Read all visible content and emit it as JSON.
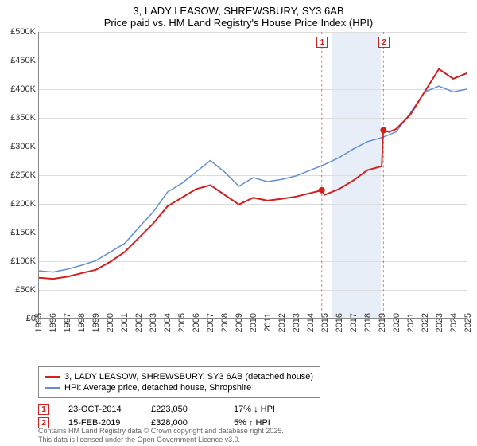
{
  "title": {
    "line1": "3, LADY LEASOW, SHREWSBURY, SY3 6AB",
    "line2": "Price paid vs. HM Land Registry's House Price Index (HPI)"
  },
  "chart": {
    "type": "line",
    "x_axis": {
      "min": 1995,
      "max": 2025,
      "ticks": [
        1995,
        1996,
        1997,
        1998,
        1999,
        2000,
        2001,
        2002,
        2003,
        2004,
        2005,
        2006,
        2007,
        2008,
        2009,
        2010,
        2011,
        2012,
        2013,
        2014,
        2015,
        2016,
        2017,
        2018,
        2019,
        2020,
        2021,
        2022,
        2023,
        2024,
        2025
      ]
    },
    "y_axis": {
      "min": 0,
      "max": 500000,
      "tick_step": 50000,
      "tick_labels": [
        "£0",
        "£50K",
        "£100K",
        "£150K",
        "£200K",
        "£250K",
        "£300K",
        "£350K",
        "£400K",
        "£450K",
        "£500K"
      ]
    },
    "grid_color": "#dcdcdc",
    "background_color": "#ffffff",
    "shaded_region": {
      "x_start": 2015.5,
      "x_end": 2018.9,
      "color": "#e8eef7"
    },
    "series": [
      {
        "name": "3, LADY LEASOW, SHREWSBURY, SY3 6AB (detached house)",
        "color": "#d02020",
        "line_width": 2,
        "data": [
          [
            1995,
            70000
          ],
          [
            1996,
            68000
          ],
          [
            1997,
            72000
          ],
          [
            1998,
            78000
          ],
          [
            1999,
            84000
          ],
          [
            2000,
            98000
          ],
          [
            2001,
            115000
          ],
          [
            2002,
            140000
          ],
          [
            2003,
            165000
          ],
          [
            2004,
            195000
          ],
          [
            2005,
            210000
          ],
          [
            2006,
            225000
          ],
          [
            2007,
            232000
          ],
          [
            2008,
            215000
          ],
          [
            2009,
            198000
          ],
          [
            2010,
            210000
          ],
          [
            2011,
            205000
          ],
          [
            2012,
            208000
          ],
          [
            2013,
            212000
          ],
          [
            2014,
            218000
          ],
          [
            2014.8,
            223050
          ],
          [
            2015,
            215000
          ],
          [
            2016,
            225000
          ],
          [
            2017,
            240000
          ],
          [
            2018,
            258000
          ],
          [
            2019,
            265000
          ],
          [
            2019.1,
            328000
          ],
          [
            2019.5,
            325000
          ],
          [
            2020,
            330000
          ],
          [
            2021,
            355000
          ],
          [
            2022,
            395000
          ],
          [
            2023,
            435000
          ],
          [
            2024,
            418000
          ],
          [
            2025,
            428000
          ]
        ]
      },
      {
        "name": "HPI: Average price, detached house, Shropshire",
        "color": "#6090d0",
        "line_width": 1.5,
        "data": [
          [
            1995,
            82000
          ],
          [
            1996,
            80000
          ],
          [
            1997,
            85000
          ],
          [
            1998,
            92000
          ],
          [
            1999,
            100000
          ],
          [
            2000,
            115000
          ],
          [
            2001,
            130000
          ],
          [
            2002,
            158000
          ],
          [
            2003,
            185000
          ],
          [
            2004,
            220000
          ],
          [
            2005,
            235000
          ],
          [
            2006,
            255000
          ],
          [
            2007,
            275000
          ],
          [
            2008,
            255000
          ],
          [
            2009,
            230000
          ],
          [
            2010,
            245000
          ],
          [
            2011,
            238000
          ],
          [
            2012,
            242000
          ],
          [
            2013,
            248000
          ],
          [
            2014,
            258000
          ],
          [
            2015,
            268000
          ],
          [
            2016,
            280000
          ],
          [
            2017,
            295000
          ],
          [
            2018,
            308000
          ],
          [
            2019,
            315000
          ],
          [
            2020,
            325000
          ],
          [
            2021,
            358000
          ],
          [
            2022,
            395000
          ],
          [
            2023,
            405000
          ],
          [
            2024,
            395000
          ],
          [
            2025,
            400000
          ]
        ]
      }
    ],
    "markers": [
      {
        "label": "1",
        "x": 2014.8,
        "y": 223050,
        "color": "#d02020"
      },
      {
        "label": "2",
        "x": 2019.12,
        "y": 328000,
        "color": "#d02020"
      }
    ],
    "marker_dot_radius": 4
  },
  "legend": {
    "items": [
      {
        "label": "3, LADY LEASOW, SHREWSBURY, SY3 6AB (detached house)",
        "color": "#d02020"
      },
      {
        "label": "HPI: Average price, detached house, Shropshire",
        "color": "#6090d0"
      }
    ]
  },
  "transactions": [
    {
      "label": "1",
      "date": "23-OCT-2014",
      "price": "£223,050",
      "delta": "17% ↓ HPI"
    },
    {
      "label": "2",
      "date": "15-FEB-2019",
      "price": "£328,000",
      "delta": "5% ↑ HPI"
    }
  ],
  "attribution": {
    "line1": "Contains HM Land Registry data © Crown copyright and database right 2025.",
    "line2": "This data is licensed under the Open Government Licence v3.0."
  }
}
